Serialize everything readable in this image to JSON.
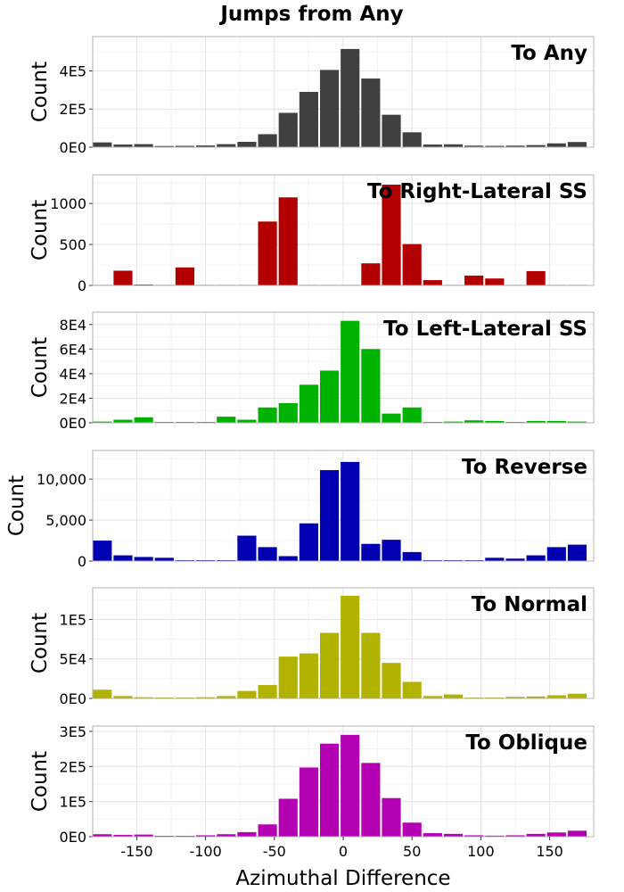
{
  "chart_data": {
    "type": "bar",
    "title": "Jumps from Any",
    "xlabel": "Azimuthal Difference",
    "x_ticks": [
      "-150",
      "-100",
      "-50",
      "0",
      "50",
      "100",
      "150"
    ],
    "x_tick_values": [
      -150,
      -100,
      -50,
      0,
      50,
      100,
      150
    ],
    "xlim": [
      -182,
      182
    ],
    "bin_centers": [
      -175,
      -160,
      -145,
      -130,
      -115,
      -100,
      -85,
      -70,
      -55,
      -40,
      -25,
      -10,
      5,
      20,
      35,
      50,
      65,
      80,
      95,
      110,
      125,
      140,
      155,
      170
    ],
    "panels": [
      {
        "name": "To Any",
        "ylabel": "Count",
        "color": "#404040",
        "ylim": [
          0,
          580000
        ],
        "y_ticks": [
          {
            "value": 0,
            "label": "0E0"
          },
          {
            "value": 200000,
            "label": "2E5"
          },
          {
            "value": 400000,
            "label": "4E5"
          }
        ],
        "values": [
          25000,
          14000,
          16000,
          6000,
          7000,
          9000,
          16000,
          28000,
          68000,
          180000,
          290000,
          405000,
          515000,
          360000,
          170000,
          78000,
          14000,
          15000,
          8000,
          7000,
          8000,
          11000,
          20000,
          27000
        ]
      },
      {
        "name": "To Right-Lateral SS",
        "ylabel": "Count",
        "color": "#b20000",
        "ylim": [
          0,
          1350
        ],
        "y_ticks": [
          {
            "value": 0,
            "label": "0"
          },
          {
            "value": 500,
            "label": "500"
          },
          {
            "value": 1000,
            "label": "1000"
          }
        ],
        "values": [
          0,
          180,
          10,
          0,
          220,
          0,
          0,
          0,
          780,
          1075,
          0,
          0,
          0,
          270,
          1230,
          505,
          65,
          0,
          120,
          85,
          0,
          175,
          0,
          0
        ]
      },
      {
        "name": "To Left-Lateral SS",
        "ylabel": "Count",
        "color": "#00b200",
        "ylim": [
          0,
          90000
        ],
        "y_ticks": [
          {
            "value": 0,
            "label": "0E0"
          },
          {
            "value": 20000,
            "label": "2E4"
          },
          {
            "value": 40000,
            "label": "4E4"
          },
          {
            "value": 60000,
            "label": "6E4"
          },
          {
            "value": 80000,
            "label": "8E4"
          }
        ],
        "values": [
          1000,
          2500,
          4500,
          500,
          200,
          500,
          5000,
          2500,
          12500,
          16000,
          31000,
          42500,
          83000,
          60000,
          7500,
          12500,
          500,
          1000,
          2000,
          1500,
          200,
          1500,
          1500,
          1000
        ]
      },
      {
        "name": "To Reverse",
        "ylabel": "Count",
        "color": "#0000b2",
        "ylim": [
          0,
          13500
        ],
        "y_ticks": [
          {
            "value": 0,
            "label": "0"
          },
          {
            "value": 5000,
            "label": "5,000"
          },
          {
            "value": 10000,
            "label": "10,000"
          }
        ],
        "values": [
          2500,
          700,
          500,
          400,
          100,
          100,
          100,
          3100,
          1700,
          600,
          4600,
          11100,
          12100,
          2100,
          2600,
          1100,
          100,
          100,
          100,
          400,
          300,
          700,
          1700,
          2000
        ]
      },
      {
        "name": "To Normal",
        "ylabel": "Count",
        "color": "#b2b200",
        "ylim": [
          0,
          140000
        ],
        "y_ticks": [
          {
            "value": 0,
            "label": "0E0"
          },
          {
            "value": 50000,
            "label": "5E4"
          },
          {
            "value": 100000,
            "label": "1E5"
          }
        ],
        "values": [
          11000,
          3000,
          1500,
          500,
          1000,
          1500,
          3000,
          9500,
          17000,
          53000,
          57000,
          83000,
          130000,
          83000,
          45000,
          21000,
          3000,
          5000,
          1000,
          1000,
          2000,
          2500,
          4000,
          6000
        ]
      },
      {
        "name": "To Oblique",
        "ylabel": "Count",
        "color": "#b200b2",
        "ylim": [
          0,
          315000
        ],
        "y_ticks": [
          {
            "value": 0,
            "label": "0E0"
          },
          {
            "value": 100000,
            "label": "1E5"
          },
          {
            "value": 200000,
            "label": "2E5"
          },
          {
            "value": 300000,
            "label": "3E5"
          }
        ],
        "values": [
          7000,
          5000,
          6000,
          2000,
          2500,
          4000,
          7000,
          13000,
          35000,
          108000,
          197000,
          265000,
          290000,
          210000,
          110000,
          40000,
          10000,
          8000,
          4000,
          3000,
          4000,
          8000,
          12000,
          17000
        ]
      }
    ]
  }
}
